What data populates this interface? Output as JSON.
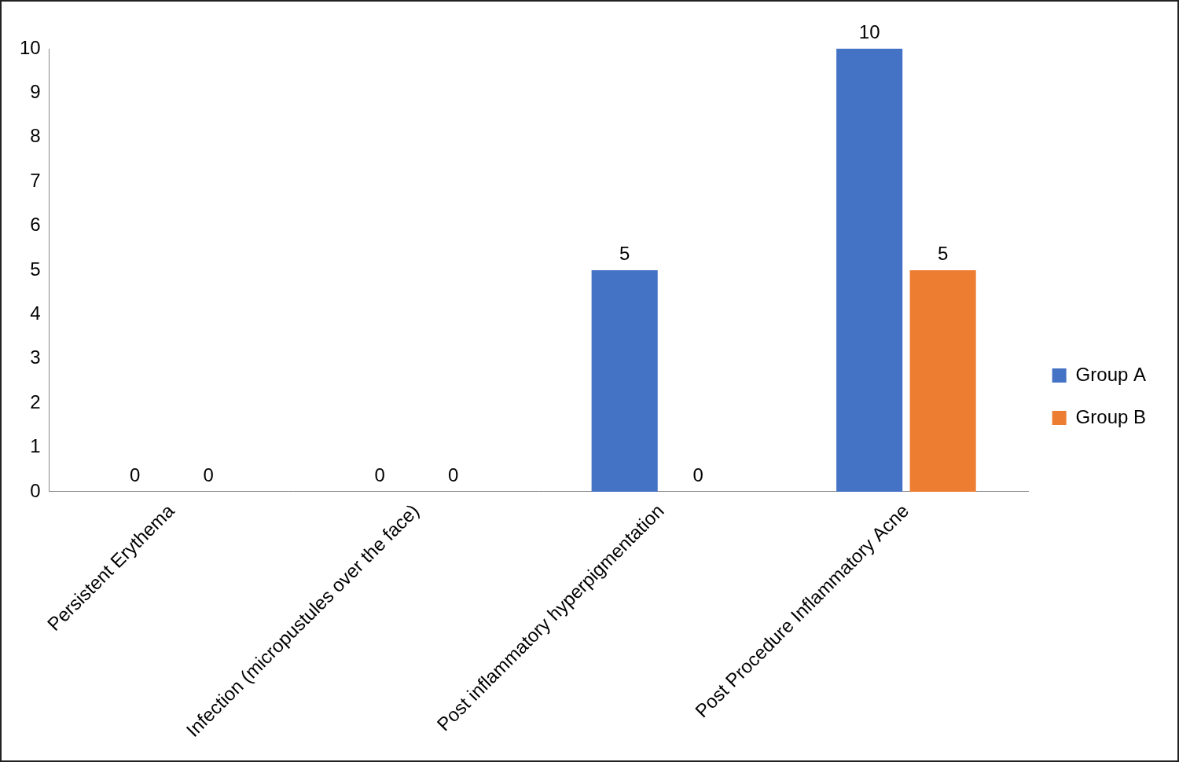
{
  "chart_data": {
    "type": "bar",
    "categories": [
      "Persistent Erythema",
      "Infection (micropustules over the face)",
      "Post inflammatory hyperpigmentation",
      "Post Procedure Inflammatory Acne"
    ],
    "series": [
      {
        "name": "Group A",
        "color": "#4472c4",
        "values": [
          0,
          0,
          5,
          10
        ]
      },
      {
        "name": "Group B",
        "color": "#ed7d31",
        "values": [
          0,
          0,
          0,
          5
        ]
      }
    ],
    "ylim": [
      0,
      10
    ],
    "yticks": [
      0,
      1,
      2,
      3,
      4,
      5,
      6,
      7,
      8,
      9,
      10
    ],
    "grid": false,
    "legend": "right",
    "data_labels": true
  }
}
